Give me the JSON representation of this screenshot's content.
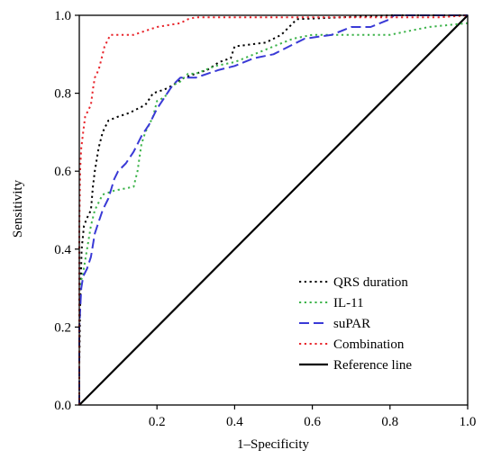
{
  "chart_data": {
    "type": "line",
    "xlabel": "1–Specificity",
    "ylabel": "Sensitivity",
    "xlim": [
      0,
      1
    ],
    "ylim": [
      0,
      1
    ],
    "x_ticks": [
      "0.2",
      "0.4",
      "0.6",
      "0.8",
      "1.0"
    ],
    "y_ticks": [
      "0.0",
      "0.2",
      "0.4",
      "0.6",
      "0.8",
      "1.0"
    ],
    "grid": false,
    "legend_position": "bottom-right",
    "series": [
      {
        "name": "QRS duration",
        "color": "#000000",
        "dash": "dotted",
        "points": [
          [
            0,
            0
          ],
          [
            0,
            0.1
          ],
          [
            0.002,
            0.25
          ],
          [
            0.006,
            0.4
          ],
          [
            0.012,
            0.46
          ],
          [
            0.02,
            0.48
          ],
          [
            0.03,
            0.5
          ],
          [
            0.035,
            0.56
          ],
          [
            0.04,
            0.6
          ],
          [
            0.05,
            0.66
          ],
          [
            0.06,
            0.7
          ],
          [
            0.075,
            0.73
          ],
          [
            0.1,
            0.74
          ],
          [
            0.13,
            0.75
          ],
          [
            0.15,
            0.76
          ],
          [
            0.17,
            0.77
          ],
          [
            0.19,
            0.8
          ],
          [
            0.22,
            0.81
          ],
          [
            0.24,
            0.82
          ],
          [
            0.27,
            0.84
          ],
          [
            0.3,
            0.85
          ],
          [
            0.33,
            0.86
          ],
          [
            0.36,
            0.88
          ],
          [
            0.39,
            0.89
          ],
          [
            0.4,
            0.92
          ],
          [
            0.48,
            0.93
          ],
          [
            0.52,
            0.95
          ],
          [
            0.55,
            0.98
          ],
          [
            0.56,
            0.99
          ],
          [
            0.8,
            1.0
          ],
          [
            1,
            1
          ]
        ]
      },
      {
        "name": "IL-11",
        "color": "#3cb34a",
        "dash": "dotted",
        "points": [
          [
            0,
            0
          ],
          [
            0,
            0.3
          ],
          [
            0.01,
            0.34
          ],
          [
            0.02,
            0.4
          ],
          [
            0.03,
            0.46
          ],
          [
            0.04,
            0.5
          ],
          [
            0.06,
            0.54
          ],
          [
            0.09,
            0.55
          ],
          [
            0.14,
            0.56
          ],
          [
            0.15,
            0.6
          ],
          [
            0.16,
            0.67
          ],
          [
            0.17,
            0.7
          ],
          [
            0.19,
            0.74
          ],
          [
            0.2,
            0.78
          ],
          [
            0.22,
            0.79
          ],
          [
            0.24,
            0.82
          ],
          [
            0.26,
            0.83
          ],
          [
            0.28,
            0.85
          ],
          [
            0.3,
            0.85
          ],
          [
            0.35,
            0.87
          ],
          [
            0.4,
            0.88
          ],
          [
            0.45,
            0.9
          ],
          [
            0.5,
            0.92
          ],
          [
            0.55,
            0.94
          ],
          [
            0.6,
            0.95
          ],
          [
            0.7,
            0.95
          ],
          [
            0.8,
            0.95
          ],
          [
            0.85,
            0.96
          ],
          [
            0.9,
            0.97
          ],
          [
            1,
            0.98
          ]
        ]
      },
      {
        "name": "suPAR",
        "color": "#3a3ad6",
        "dash": "dashed",
        "points": [
          [
            0,
            0
          ],
          [
            0,
            0.2
          ],
          [
            0.005,
            0.3
          ],
          [
            0.01,
            0.33
          ],
          [
            0.02,
            0.35
          ],
          [
            0.03,
            0.38
          ],
          [
            0.04,
            0.44
          ],
          [
            0.05,
            0.47
          ],
          [
            0.06,
            0.5
          ],
          [
            0.075,
            0.53
          ],
          [
            0.09,
            0.58
          ],
          [
            0.1,
            0.6
          ],
          [
            0.12,
            0.62
          ],
          [
            0.14,
            0.65
          ],
          [
            0.16,
            0.69
          ],
          [
            0.18,
            0.72
          ],
          [
            0.2,
            0.76
          ],
          [
            0.22,
            0.79
          ],
          [
            0.24,
            0.82
          ],
          [
            0.26,
            0.84
          ],
          [
            0.3,
            0.84
          ],
          [
            0.33,
            0.85
          ],
          [
            0.36,
            0.86
          ],
          [
            0.4,
            0.87
          ],
          [
            0.45,
            0.89
          ],
          [
            0.5,
            0.9
          ],
          [
            0.54,
            0.92
          ],
          [
            0.58,
            0.94
          ],
          [
            0.65,
            0.95
          ],
          [
            0.7,
            0.97
          ],
          [
            0.75,
            0.97
          ],
          [
            0.8,
            0.99
          ],
          [
            0.81,
            1.0
          ],
          [
            1,
            1
          ]
        ]
      },
      {
        "name": "Combination",
        "color": "#e8262c",
        "dash": "dotted",
        "points": [
          [
            0,
            0
          ],
          [
            0,
            0.45
          ],
          [
            0.002,
            0.6
          ],
          [
            0.005,
            0.66
          ],
          [
            0.01,
            0.7
          ],
          [
            0.015,
            0.74
          ],
          [
            0.02,
            0.75
          ],
          [
            0.03,
            0.77
          ],
          [
            0.035,
            0.81
          ],
          [
            0.04,
            0.84
          ],
          [
            0.05,
            0.86
          ],
          [
            0.055,
            0.88
          ],
          [
            0.06,
            0.9
          ],
          [
            0.065,
            0.92
          ],
          [
            0.07,
            0.93
          ],
          [
            0.08,
            0.95
          ],
          [
            0.1,
            0.95
          ],
          [
            0.14,
            0.95
          ],
          [
            0.17,
            0.96
          ],
          [
            0.2,
            0.97
          ],
          [
            0.26,
            0.98
          ],
          [
            0.28,
            0.99
          ],
          [
            0.3,
            0.995
          ],
          [
            0.5,
            0.995
          ],
          [
            0.7,
            0.995
          ],
          [
            0.93,
            0.995
          ],
          [
            1,
            1
          ]
        ]
      },
      {
        "name": "Reference line",
        "color": "#000000",
        "dash": "solid",
        "points": [
          [
            0,
            0
          ],
          [
            1,
            1
          ]
        ]
      }
    ]
  }
}
